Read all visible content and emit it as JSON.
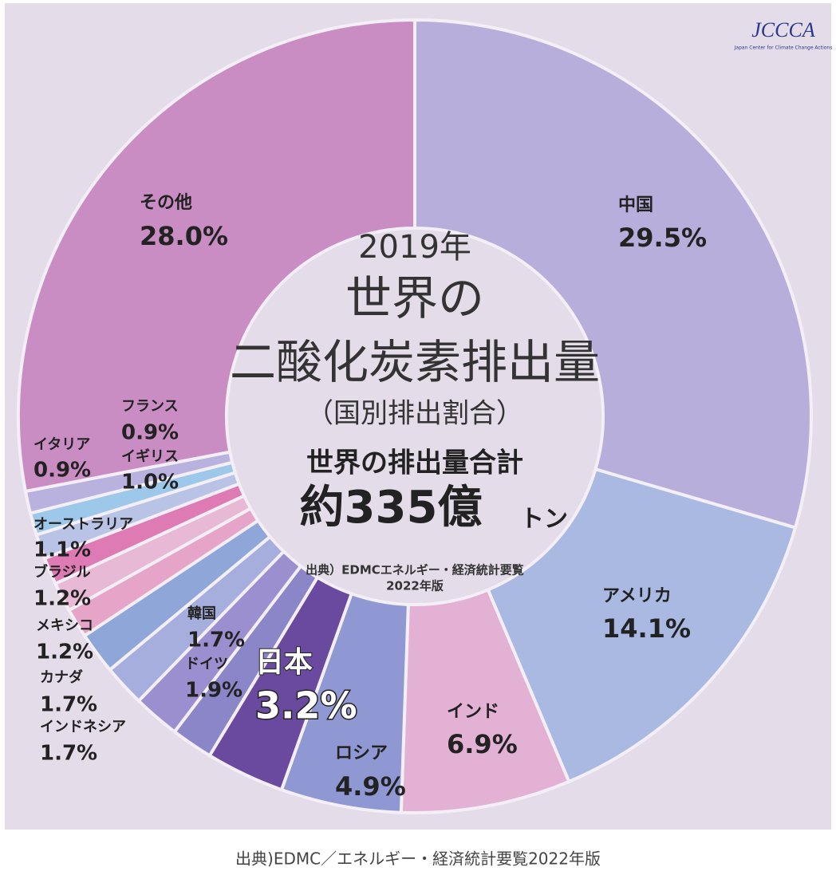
{
  "chart_data": {
    "type": "donut",
    "title": "2019年",
    "subtitle_lines": [
      "世界の",
      "二酸化炭素排出量",
      "（国別排出割合）"
    ],
    "total_label": "世界の排出量合計",
    "total_value": "約335億",
    "total_unit": "トン",
    "inner_source_lines": [
      "出典）EDMCエネルギー・経済統計要覧",
      "2022年版"
    ],
    "logo": "JCCCA",
    "logo_subtitle": "Japan Center for Climate Change Actions",
    "source": "出典)EDMC／エネルギー・経済統計要覧2022年版",
    "categories": [
      "中国",
      "アメリカ",
      "インド",
      "ロシア",
      "日本",
      "韓国",
      "ドイツ",
      "インドネシア",
      "カナダ",
      "メキシコ",
      "ブラジル",
      "オーストラリア",
      "イギリス",
      "イタリア",
      "フランス",
      "その他"
    ],
    "values": [
      29.5,
      14.1,
      6.9,
      4.9,
      3.2,
      1.7,
      1.9,
      1.7,
      1.7,
      1.2,
      1.2,
      1.1,
      1.0,
      0.9,
      0.9,
      28.0
    ],
    "value_labels": [
      "29.5%",
      "14.1%",
      "6.9%",
      "4.9%",
      "3.2%",
      "1.7%",
      "1.9%",
      "1.7%",
      "1.7%",
      "1.2%",
      "1.2%",
      "1.1%",
      "1.0%",
      "0.9%",
      "0.9%",
      "28.0%"
    ],
    "colors": [
      "#b7aedb",
      "#a9b9e2",
      "#e2b1d4",
      "#8f98d2",
      "#6a4a9e",
      "#8a86c8",
      "#9c8fcf",
      "#a6aede",
      "#8ea6d8",
      "#e6a4c8",
      "#e7b9d5",
      "#df7bb4",
      "#b8c3e6",
      "#9ec8ea",
      "#b9b1de",
      "#c98dc3"
    ]
  }
}
